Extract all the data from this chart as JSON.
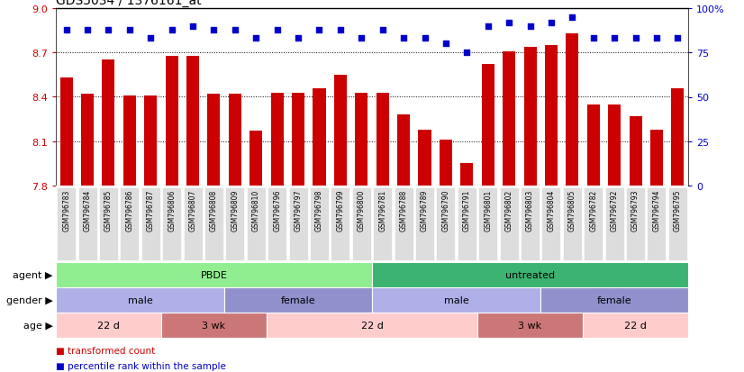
{
  "title": "GDS5034 / 1376161_at",
  "samples": [
    "GSM796783",
    "GSM796784",
    "GSM796785",
    "GSM796786",
    "GSM796787",
    "GSM796806",
    "GSM796807",
    "GSM796808",
    "GSM796809",
    "GSM796810",
    "GSM796796",
    "GSM796797",
    "GSM796798",
    "GSM796799",
    "GSM796800",
    "GSM796781",
    "GSM796788",
    "GSM796789",
    "GSM796790",
    "GSM796791",
    "GSM796801",
    "GSM796802",
    "GSM796803",
    "GSM796804",
    "GSM796805",
    "GSM796782",
    "GSM796792",
    "GSM796793",
    "GSM796794",
    "GSM796795"
  ],
  "bar_values": [
    8.53,
    8.42,
    8.65,
    8.41,
    8.41,
    8.68,
    8.68,
    8.42,
    8.42,
    8.17,
    8.43,
    8.43,
    8.46,
    8.55,
    8.43,
    8.43,
    8.28,
    8.18,
    8.11,
    7.95,
    8.62,
    8.71,
    8.74,
    8.75,
    8.83,
    8.35,
    8.35,
    8.27,
    8.18,
    8.46
  ],
  "percentile_values": [
    88,
    88,
    88,
    88,
    83,
    88,
    90,
    88,
    88,
    83,
    88,
    83,
    88,
    88,
    83,
    88,
    83,
    83,
    80,
    75,
    90,
    92,
    90,
    92,
    95,
    83,
    83,
    83,
    83,
    83
  ],
  "ylim_left": [
    7.8,
    9.0
  ],
  "ylim_right": [
    0,
    100
  ],
  "yticks_left": [
    7.8,
    8.1,
    8.4,
    8.7,
    9.0
  ],
  "yticks_right": [
    0,
    25,
    50,
    75,
    100
  ],
  "bar_color": "#cc0000",
  "dot_color": "#0000cc",
  "agent_groups": [
    {
      "label": "PBDE",
      "start": 0,
      "end": 14,
      "color": "#90ee90"
    },
    {
      "label": "untreated",
      "start": 15,
      "end": 29,
      "color": "#3cb371"
    }
  ],
  "gender_groups": [
    {
      "label": "male",
      "start": 0,
      "end": 7,
      "color": "#b0b0e8"
    },
    {
      "label": "female",
      "start": 8,
      "end": 14,
      "color": "#9090cc"
    },
    {
      "label": "male",
      "start": 15,
      "end": 22,
      "color": "#b0b0e8"
    },
    {
      "label": "female",
      "start": 23,
      "end": 29,
      "color": "#9090cc"
    }
  ],
  "age_groups": [
    {
      "label": "22 d",
      "start": 0,
      "end": 4,
      "color": "#ffcccc"
    },
    {
      "label": "3 wk",
      "start": 5,
      "end": 9,
      "color": "#cc7777"
    },
    {
      "label": "22 d",
      "start": 10,
      "end": 19,
      "color": "#ffcccc"
    },
    {
      "label": "3 wk",
      "start": 20,
      "end": 24,
      "color": "#cc7777"
    },
    {
      "label": "22 d",
      "start": 25,
      "end": 29,
      "color": "#ffcccc"
    }
  ],
  "legend_bar_label": "transformed count",
  "legend_dot_label": "percentile rank within the sample",
  "row_labels": [
    "agent",
    "gender",
    "age"
  ],
  "background_color": "#ffffff",
  "xtick_bg": "#dddddd",
  "gridline_yticks": [
    8.1,
    8.4,
    8.7
  ]
}
